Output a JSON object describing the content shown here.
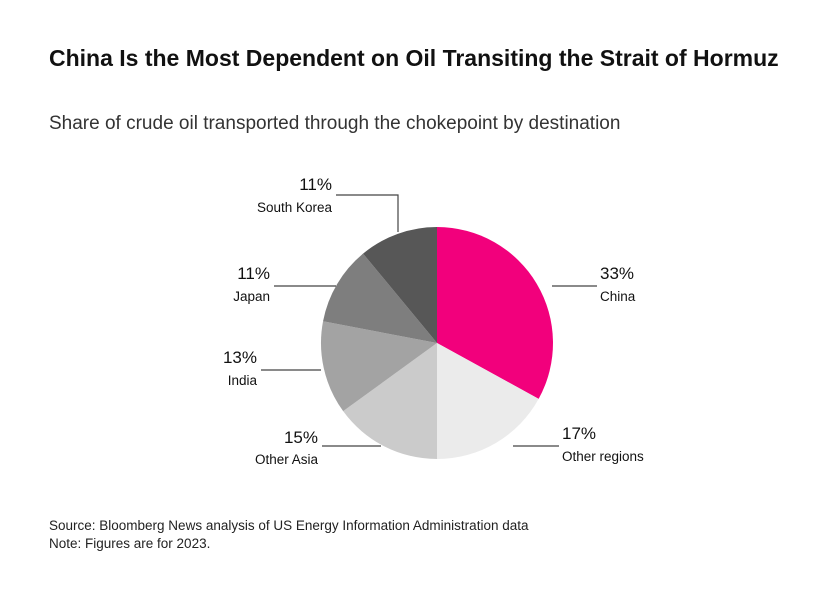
{
  "title": "China Is the Most Dependent on Oil Transiting the Strait of Hormuz",
  "subtitle": "Share of crude oil transported through the chokepoint by destination",
  "footer": {
    "source": "Source: Bloomberg News analysis of US Energy Information Administration data",
    "note": "Note: Figures are for 2023."
  },
  "chart_data": {
    "type": "pie",
    "title": "China Is the Most Dependent on Oil Transiting the Strait of Hormuz",
    "subtitle": "Share of crude oil transported through the chokepoint by destination",
    "unit": "%",
    "slices": [
      {
        "label": "China",
        "value": 33,
        "value_label": "33%",
        "color": "#f2007c"
      },
      {
        "label": "Other regions",
        "value": 17,
        "value_label": "17%",
        "color": "#ebebeb"
      },
      {
        "label": "Other Asia",
        "value": 15,
        "value_label": "15%",
        "color": "#cbcbcb"
      },
      {
        "label": "India",
        "value": 13,
        "value_label": "13%",
        "color": "#a3a3a3"
      },
      {
        "label": "Japan",
        "value": 11,
        "value_label": "11%",
        "color": "#7e7e7e"
      },
      {
        "label": "South Korea",
        "value": 11,
        "value_label": "11%",
        "color": "#575757"
      }
    ],
    "start": "12 o'clock",
    "direction": "clockwise"
  }
}
